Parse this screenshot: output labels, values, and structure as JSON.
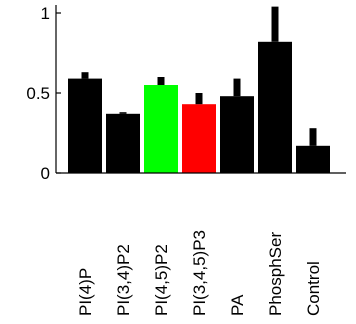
{
  "chart_data": {
    "type": "bar",
    "categories": [
      "PI(4)P",
      "PI(3,4)P2",
      "PI(4,5)P2",
      "PI(3,4,5)P3",
      "PA",
      "PhosphSer",
      "Control"
    ],
    "values": [
      0.59,
      0.37,
      0.55,
      0.43,
      0.48,
      0.82,
      0.17
    ],
    "errors": [
      0.04,
      0.01,
      0.05,
      0.07,
      0.11,
      0.22,
      0.11
    ],
    "bar_colors": [
      "#000000",
      "#000000",
      "#00ff00",
      "#ff0000",
      "#000000",
      "#000000",
      "#000000"
    ],
    "ylim": [
      0,
      1.05
    ],
    "yticks": [
      0,
      0.5,
      1
    ],
    "ytick_labels": [
      "0",
      "0.5",
      "1"
    ],
    "title": "",
    "xlabel": "",
    "ylabel": "",
    "grid": false,
    "legend": "none"
  }
}
